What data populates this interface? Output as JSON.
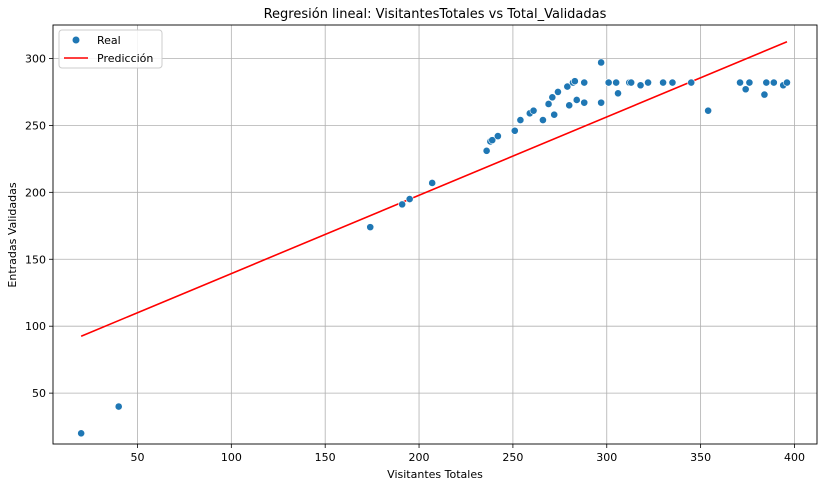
{
  "chart_data": {
    "type": "scatter",
    "title": "Regresión lineal: VisitantesTotales vs Total_Validadas",
    "xlabel": "Visitantes Totales",
    "ylabel": "Entradas Validadas",
    "xlim": [
      5,
      412
    ],
    "ylim": [
      12,
      325
    ],
    "xticks": [
      50,
      100,
      150,
      200,
      250,
      300,
      350,
      400
    ],
    "yticks": [
      50,
      100,
      150,
      200,
      250,
      300
    ],
    "grid": true,
    "legend_position": "top-left",
    "colors": {
      "real": "#1f77b4",
      "prediccion": "#ff0000",
      "grid": "#b0b0b0"
    },
    "series": [
      {
        "name": "Real",
        "kind": "scatter",
        "points": [
          [
            20,
            20
          ],
          [
            40,
            40
          ],
          [
            174,
            174
          ],
          [
            191,
            191
          ],
          [
            195,
            195
          ],
          [
            207,
            207
          ],
          [
            236,
            231
          ],
          [
            238,
            238
          ],
          [
            239,
            239
          ],
          [
            242,
            242
          ],
          [
            251,
            246
          ],
          [
            254,
            254
          ],
          [
            259,
            259
          ],
          [
            261,
            261
          ],
          [
            266,
            254
          ],
          [
            269,
            266
          ],
          [
            271,
            271
          ],
          [
            272,
            258
          ],
          [
            274,
            275
          ],
          [
            279,
            279
          ],
          [
            280,
            265
          ],
          [
            282,
            282
          ],
          [
            283,
            283
          ],
          [
            284,
            269
          ],
          [
            288,
            282
          ],
          [
            288,
            267
          ],
          [
            297,
            297
          ],
          [
            297,
            267
          ],
          [
            301,
            282
          ],
          [
            305,
            282
          ],
          [
            306,
            274
          ],
          [
            312,
            282
          ],
          [
            313,
            282
          ],
          [
            318,
            280
          ],
          [
            322,
            282
          ],
          [
            330,
            282
          ],
          [
            335,
            282
          ],
          [
            345,
            282
          ],
          [
            354,
            261
          ],
          [
            371,
            282
          ],
          [
            374,
            277
          ],
          [
            376,
            282
          ],
          [
            384,
            273
          ],
          [
            385,
            282
          ],
          [
            389,
            282
          ],
          [
            394,
            280
          ],
          [
            396,
            282
          ]
        ]
      },
      {
        "name": "Predicción",
        "kind": "line",
        "x": [
          20,
          396
        ],
        "y": [
          92.5,
          312.5
        ]
      }
    ]
  }
}
